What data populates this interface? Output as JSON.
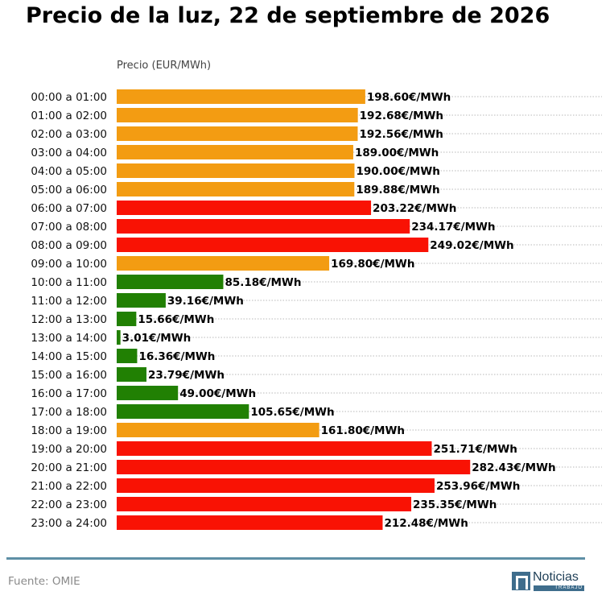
{
  "chart_data": {
    "type": "bar",
    "orientation": "horizontal",
    "title": "Precio de la luz, 22 de septiembre de 2026",
    "ylabel": "Precio (EUR/MWh)",
    "value_suffix": "€/MWh",
    "grid": "dotted horizontal",
    "categories": [
      "00:00 a 01:00",
      "01:00 a 02:00",
      "02:00 a 03:00",
      "03:00 a 04:00",
      "04:00 a 05:00",
      "05:00 a 06:00",
      "06:00 a 07:00",
      "07:00 a 08:00",
      "08:00 a 09:00",
      "09:00 a 10:00",
      "10:00 a 11:00",
      "11:00 a 12:00",
      "12:00 a 13:00",
      "13:00 a 14:00",
      "14:00 a 15:00",
      "15:00 a 16:00",
      "16:00 a 17:00",
      "17:00 a 18:00",
      "18:00 a 19:00",
      "19:00 a 20:00",
      "20:00 a 21:00",
      "21:00 a 22:00",
      "22:00 a 23:00",
      "23:00 a 24:00"
    ],
    "values": [
      198.6,
      192.68,
      192.56,
      189.0,
      190.0,
      189.88,
      203.22,
      234.17,
      249.02,
      169.8,
      85.18,
      39.16,
      15.66,
      3.01,
      16.36,
      23.79,
      49.0,
      105.65,
      161.8,
      251.71,
      282.43,
      253.96,
      235.35,
      212.48
    ],
    "levels": [
      "mid",
      "mid",
      "mid",
      "mid",
      "mid",
      "mid",
      "high",
      "high",
      "high",
      "mid",
      "low",
      "low",
      "low",
      "low",
      "low",
      "low",
      "low",
      "low",
      "mid",
      "high",
      "high",
      "high",
      "high",
      "high"
    ],
    "colors": {
      "low": "#218003",
      "mid": "#f39c12",
      "high": "#f91204"
    },
    "xlim": [
      0,
      380
    ]
  },
  "footer": {
    "source": "Fuente: OMIE",
    "logo_name": "Noticias",
    "logo_sub": "TRABAJO"
  }
}
